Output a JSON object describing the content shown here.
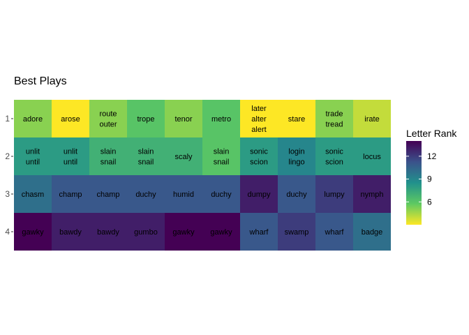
{
  "chart_data": {
    "type": "heatmap",
    "title": "Best Plays",
    "rows": [
      "1",
      "2",
      "3",
      "4"
    ],
    "legend_title": "Letter Rank",
    "legend_ticks": [
      12,
      9,
      6
    ],
    "legend_range": [
      3,
      14
    ],
    "palette": "viridis (reversed: low = yellow, high = purple)",
    "cells": [
      [
        {
          "words": [
            "adore"
          ],
          "value": 5
        },
        {
          "words": [
            "arose"
          ],
          "value": 3
        },
        {
          "words": [
            "route",
            "outer"
          ],
          "value": 5
        },
        {
          "words": [
            "trope"
          ],
          "value": 6
        },
        {
          "words": [
            "tenor"
          ],
          "value": 5
        },
        {
          "words": [
            "metro"
          ],
          "value": 6
        },
        {
          "words": [
            "later",
            "alter",
            "alert"
          ],
          "value": 3
        },
        {
          "words": [
            "stare"
          ],
          "value": 3
        },
        {
          "words": [
            "trade",
            "tread"
          ],
          "value": 5
        },
        {
          "words": [
            "irate"
          ],
          "value": 4
        }
      ],
      [
        {
          "words": [
            "unlit",
            "until"
          ],
          "value": 8
        },
        {
          "words": [
            "unlit",
            "until"
          ],
          "value": 8
        },
        {
          "words": [
            "slain",
            "snail"
          ],
          "value": 7
        },
        {
          "words": [
            "slain",
            "snail"
          ],
          "value": 7
        },
        {
          "words": [
            "scaly"
          ],
          "value": 7
        },
        {
          "words": [
            "slain",
            "snail"
          ],
          "value": 6
        },
        {
          "words": [
            "sonic",
            "scion"
          ],
          "value": 8
        },
        {
          "words": [
            "login",
            "lingo"
          ],
          "value": 9
        },
        {
          "words": [
            "sonic",
            "scion"
          ],
          "value": 8
        },
        {
          "words": [
            "locus"
          ],
          "value": 8
        }
      ],
      [
        {
          "words": [
            "chasm"
          ],
          "value": 10
        },
        {
          "words": [
            "champ"
          ],
          "value": 11
        },
        {
          "words": [
            "champ"
          ],
          "value": 11
        },
        {
          "words": [
            "duchy"
          ],
          "value": 11
        },
        {
          "words": [
            "humid"
          ],
          "value": 11
        },
        {
          "words": [
            "duchy"
          ],
          "value": 11
        },
        {
          "words": [
            "dumpy"
          ],
          "value": 13
        },
        {
          "words": [
            "duchy"
          ],
          "value": 11
        },
        {
          "words": [
            "lumpy"
          ],
          "value": 12
        },
        {
          "words": [
            "nymph"
          ],
          "value": 13
        }
      ],
      [
        {
          "words": [
            "gawky"
          ],
          "value": 14
        },
        {
          "words": [
            "bawdy"
          ],
          "value": 13
        },
        {
          "words": [
            "bawdy"
          ],
          "value": 13
        },
        {
          "words": [
            "gumbo"
          ],
          "value": 13
        },
        {
          "words": [
            "gawky"
          ],
          "value": 14
        },
        {
          "words": [
            "gawky"
          ],
          "value": 14
        },
        {
          "words": [
            "wharf"
          ],
          "value": 11
        },
        {
          "words": [
            "swamp"
          ],
          "value": 12
        },
        {
          "words": [
            "wharf"
          ],
          "value": 11
        },
        {
          "words": [
            "badge"
          ],
          "value": 10
        }
      ]
    ]
  }
}
